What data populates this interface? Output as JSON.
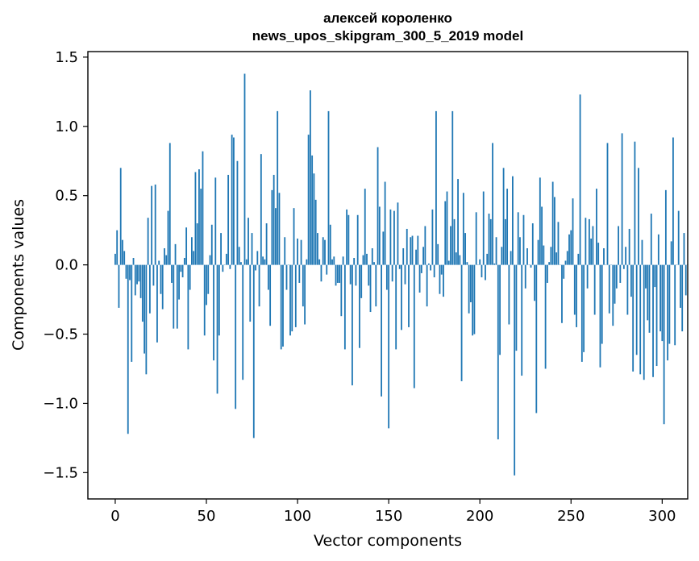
{
  "chart_data": {
    "type": "bar",
    "title_line1": "алексей короленко",
    "title_line2": "news_upos_skipgram_300_5_2019 model",
    "xlabel": "Vector components",
    "ylabel": "Components values",
    "xlim": [
      -15,
      314
    ],
    "ylim": [
      -1.69,
      1.54
    ],
    "xticks": [
      0,
      50,
      100,
      150,
      200,
      250,
      300
    ],
    "xtick_labels": [
      "0",
      "50",
      "100",
      "150",
      "200",
      "250",
      "300"
    ],
    "yticks": [
      -1.5,
      -1.0,
      -0.5,
      0.0,
      0.5,
      1.0,
      1.5
    ],
    "ytick_labels": [
      "−1.5",
      "−1.0",
      "−0.5",
      "0.0",
      "0.5",
      "1.0",
      "1.5"
    ],
    "bar_color": "#1f77b4",
    "values": [
      0.08,
      0.25,
      -0.31,
      0.7,
      0.18,
      0.1,
      -0.1,
      -1.22,
      -0.11,
      -0.7,
      0.05,
      -0.22,
      -0.14,
      -0.12,
      -0.24,
      -0.41,
      -0.64,
      -0.79,
      0.34,
      -0.35,
      0.57,
      -0.15,
      0.58,
      -0.56,
      0.03,
      -0.21,
      -0.32,
      0.12,
      0.07,
      0.39,
      0.88,
      -0.13,
      -0.46,
      0.15,
      -0.46,
      -0.25,
      -0.05,
      -0.09,
      0.05,
      0.27,
      -0.61,
      -0.18,
      0.2,
      0.1,
      0.67,
      0.3,
      0.69,
      0.55,
      0.82,
      -0.51,
      -0.29,
      -0.21,
      0.07,
      0.29,
      -0.69,
      0.63,
      -0.93,
      -0.51,
      0.23,
      -0.05,
      0.0,
      0.08,
      0.65,
      -0.03,
      0.94,
      0.92,
      -1.04,
      0.75,
      0.13,
      0.02,
      -0.83,
      1.38,
      0.04,
      0.34,
      -0.41,
      0.23,
      -1.25,
      -0.04,
      0.1,
      -0.3,
      0.8,
      0.06,
      0.04,
      0.3,
      -0.18,
      -0.44,
      0.54,
      0.65,
      0.41,
      1.11,
      0.52,
      -0.61,
      -0.59,
      0.2,
      -0.18,
      0.0,
      -0.51,
      -0.48,
      0.41,
      -0.45,
      0.19,
      -0.13,
      0.18,
      -0.3,
      -0.43,
      0.04,
      0.94,
      1.26,
      0.79,
      0.66,
      0.47,
      0.23,
      0.04,
      -0.12,
      0.2,
      0.18,
      -0.07,
      1.11,
      0.29,
      0.04,
      0.06,
      -0.15,
      -0.13,
      -0.13,
      -0.37,
      0.06,
      -0.61,
      0.4,
      0.36,
      -0.14,
      -0.87,
      0.05,
      -0.15,
      0.36,
      -0.6,
      -0.24,
      0.07,
      0.55,
      0.08,
      -0.15,
      -0.34,
      0.12,
      0.02,
      -0.3,
      0.85,
      0.42,
      -0.95,
      0.24,
      0.6,
      -0.18,
      -1.18,
      0.4,
      -0.12,
      0.39,
      -0.61,
      0.45,
      -0.03,
      -0.47,
      0.12,
      -0.14,
      0.26,
      -0.45,
      0.2,
      0.21,
      -0.89,
      0.11,
      0.21,
      -0.2,
      -0.06,
      0.13,
      0.28,
      -0.3,
      0.01,
      -0.04,
      0.4,
      -0.09,
      1.11,
      0.15,
      -0.21,
      -0.07,
      -0.23,
      0.46,
      0.53,
      0.03,
      0.28,
      1.11,
      0.33,
      0.09,
      0.62,
      0.07,
      -0.84,
      0.52,
      0.23,
      0.02,
      -0.35,
      -0.27,
      -0.51,
      -0.5,
      0.38,
      0.0,
      0.04,
      -0.09,
      0.53,
      -0.11,
      0.08,
      0.37,
      0.33,
      0.88,
      0.01,
      0.2,
      -1.26,
      -0.65,
      0.13,
      0.7,
      0.33,
      0.55,
      -0.43,
      0.1,
      0.64,
      -1.52,
      -0.62,
      0.38,
      0.2,
      -0.8,
      0.36,
      -0.17,
      0.12,
      0.0,
      -0.02,
      0.3,
      -0.26,
      -1.07,
      0.18,
      0.63,
      0.42,
      0.14,
      -0.75,
      -0.13,
      0.02,
      0.13,
      0.6,
      0.49,
      0.09,
      0.31,
      0.0,
      -0.42,
      -0.1,
      0.03,
      0.1,
      0.22,
      0.25,
      0.48,
      -0.36,
      -0.45,
      0.08,
      1.23,
      -0.7,
      -0.63,
      0.34,
      -0.17,
      0.33,
      0.19,
      0.28,
      -0.36,
      0.55,
      0.16,
      -0.74,
      -0.57,
      0.12,
      0.0,
      0.88,
      -0.35,
      0.0,
      -0.44,
      -0.28,
      -0.17,
      0.28,
      -0.13,
      0.95,
      -0.03,
      0.13,
      -0.36,
      0.26,
      -0.23,
      -0.77,
      0.89,
      -0.65,
      0.7,
      -0.79,
      0.18,
      -0.83,
      -0.17,
      -0.4,
      -0.49,
      0.37,
      -0.81,
      -0.16,
      -0.73,
      0.22,
      -0.48,
      -0.55,
      -1.15,
      0.54,
      -0.69,
      -0.57,
      0.17,
      0.92,
      -0.58,
      0.0,
      0.39,
      -0.31,
      -0.48,
      0.23,
      -0.22,
      0.0
    ]
  }
}
